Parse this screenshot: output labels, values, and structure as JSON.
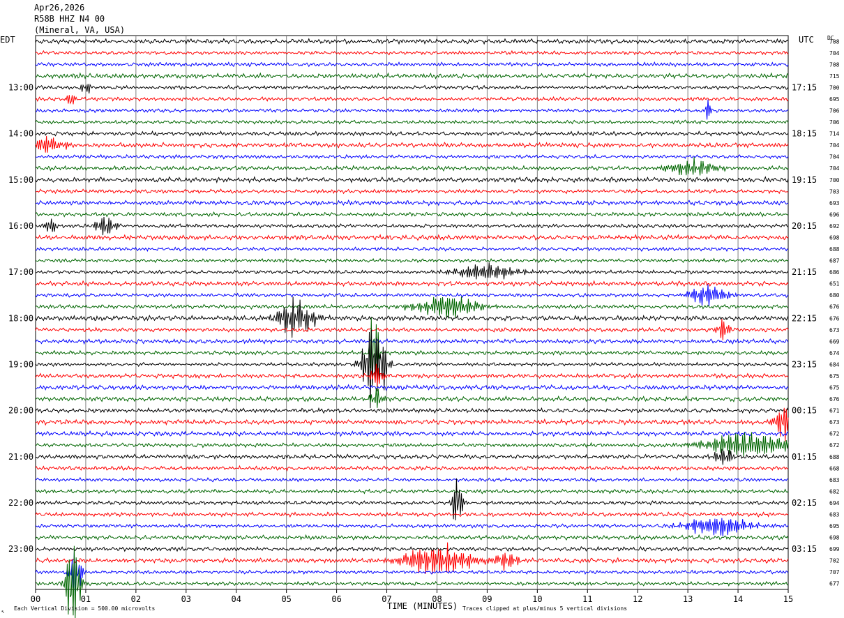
{
  "header": {
    "date": "Apr26,2026",
    "station": "R58B HHZ N4 00",
    "location": "(Mineral, VA, USA)"
  },
  "left_tz": "EDT",
  "right_tz": "UTC",
  "dc_label": "DC",
  "footer": {
    "scale": "Each Vertical Division =  500.00 microvolts",
    "clip": "Traces clipped at plus/minus 5 vertical divisions",
    "corner": "↖"
  },
  "chart_data": {
    "type": "line",
    "title": "",
    "xlabel": "TIME (MINUTES)",
    "x_ticks": [
      "00",
      "01",
      "02",
      "03",
      "04",
      "05",
      "06",
      "07",
      "08",
      "09",
      "10",
      "11",
      "12",
      "13",
      "14",
      "15"
    ],
    "xlim": [
      0,
      15
    ],
    "trace_colors": [
      "#000000",
      "#ff0000",
      "#0000ff",
      "#006600"
    ],
    "grid": true,
    "left_time_labels": [
      {
        "row": 4,
        "label": "13:00"
      },
      {
        "row": 8,
        "label": "14:00"
      },
      {
        "row": 12,
        "label": "15:00"
      },
      {
        "row": 16,
        "label": "16:00"
      },
      {
        "row": 20,
        "label": "17:00"
      },
      {
        "row": 24,
        "label": "18:00"
      },
      {
        "row": 28,
        "label": "19:00"
      },
      {
        "row": 32,
        "label": "20:00"
      },
      {
        "row": 36,
        "label": "21:00"
      },
      {
        "row": 40,
        "label": "22:00"
      },
      {
        "row": 44,
        "label": "23:00"
      }
    ],
    "right_time_labels": [
      {
        "row": 4,
        "label": "17:15"
      },
      {
        "row": 8,
        "label": "18:15"
      },
      {
        "row": 12,
        "label": "19:15"
      },
      {
        "row": 16,
        "label": "20:15"
      },
      {
        "row": 20,
        "label": "21:15"
      },
      {
        "row": 24,
        "label": "22:15"
      },
      {
        "row": 28,
        "label": "23:15"
      },
      {
        "row": 32,
        "label": "00:15"
      },
      {
        "row": 36,
        "label": "01:15"
      },
      {
        "row": 40,
        "label": "02:15"
      },
      {
        "row": 44,
        "label": "03:15"
      }
    ],
    "dc_offsets": [
      708,
      704,
      708,
      715,
      700,
      695,
      706,
      706,
      714,
      704,
      704,
      704,
      700,
      703,
      693,
      696,
      692,
      698,
      688,
      687,
      686,
      651,
      680,
      676,
      676,
      673,
      669,
      674,
      684,
      675,
      675,
      676,
      671,
      673,
      672,
      672,
      688,
      668,
      683,
      682,
      694,
      683,
      695,
      698,
      699,
      702,
      707,
      677
    ],
    "events": [
      {
        "row": 4,
        "minute": 1.0,
        "amp": 1.2,
        "width": 0.15
      },
      {
        "row": 5,
        "minute": 0.7,
        "amp": 1.6,
        "width": 0.1
      },
      {
        "row": 6,
        "minute": 13.4,
        "amp": 1.5,
        "width": 0.1
      },
      {
        "row": 9,
        "minute": 0.2,
        "amp": 1.3,
        "width": 0.6
      },
      {
        "row": 11,
        "minute": 13.1,
        "amp": 1.2,
        "width": 0.8
      },
      {
        "row": 16,
        "minute": 1.4,
        "amp": 1.8,
        "width": 0.3
      },
      {
        "row": 16,
        "minute": 0.3,
        "amp": 1.2,
        "width": 0.2
      },
      {
        "row": 20,
        "minute": 9.0,
        "amp": 1.3,
        "width": 1.0
      },
      {
        "row": 22,
        "minute": 13.4,
        "amp": 1.5,
        "width": 0.6
      },
      {
        "row": 23,
        "minute": 8.2,
        "amp": 1.6,
        "width": 1.0
      },
      {
        "row": 24,
        "minute": 5.2,
        "amp": 2.6,
        "width": 0.6
      },
      {
        "row": 25,
        "minute": 13.7,
        "amp": 1.6,
        "width": 0.2
      },
      {
        "row": 27,
        "minute": 6.75,
        "amp": 9.0,
        "width": 0.12
      },
      {
        "row": 28,
        "minute": 6.75,
        "amp": 7.0,
        "width": 0.35
      },
      {
        "row": 29,
        "minute": 6.8,
        "amp": 1.8,
        "width": 0.2
      },
      {
        "row": 31,
        "minute": 6.8,
        "amp": 1.6,
        "width": 0.2
      },
      {
        "row": 33,
        "minute": 14.9,
        "amp": 2.5,
        "width": 0.3
      },
      {
        "row": 35,
        "minute": 14.2,
        "amp": 1.8,
        "width": 1.4
      },
      {
        "row": 36,
        "minute": 13.7,
        "amp": 1.4,
        "width": 0.3
      },
      {
        "row": 40,
        "minute": 8.4,
        "amp": 4.2,
        "width": 0.15
      },
      {
        "row": 42,
        "minute": 13.6,
        "amp": 1.6,
        "width": 1.0
      },
      {
        "row": 45,
        "minute": 8.0,
        "amp": 2.2,
        "width": 1.1
      },
      {
        "row": 45,
        "minute": 9.4,
        "amp": 1.4,
        "width": 0.4
      },
      {
        "row": 46,
        "minute": 0.8,
        "amp": 3.5,
        "width": 0.2
      },
      {
        "row": 47,
        "minute": 0.75,
        "amp": 9.0,
        "width": 0.2
      }
    ]
  }
}
